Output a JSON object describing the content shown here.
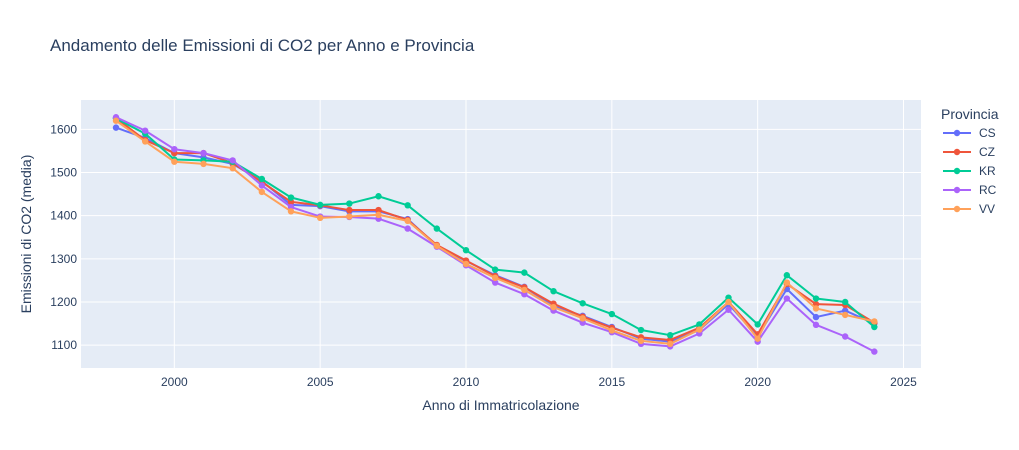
{
  "chart_data": {
    "type": "line",
    "title": "Andamento delle Emissioni di CO2 per Anno e Provincia",
    "xlabel": "Anno di Immatricolazione",
    "ylabel": "Emissioni di CO2 (media)",
    "xlim": [
      1996.8,
      2025.6
    ],
    "ylim": [
      1047,
      1668
    ],
    "xticks": [
      2000,
      2005,
      2010,
      2015,
      2020,
      2025
    ],
    "yticks": [
      1100,
      1200,
      1300,
      1400,
      1500,
      1600
    ],
    "grid": true,
    "legend_title": "Provincia",
    "legend_position": "right",
    "x": [
      1998,
      1999,
      2000,
      2001,
      2002,
      2003,
      2004,
      2005,
      2006,
      2007,
      2008,
      2009,
      2010,
      2011,
      2012,
      2013,
      2014,
      2015,
      2016,
      2017,
      2018,
      2019,
      2020,
      2021,
      2022,
      2023,
      2024
    ],
    "series": [
      {
        "name": "CS",
        "color": "#636efa",
        "values": [
          1604,
          1580,
          1545,
          1535,
          1520,
          1480,
          1425,
          1422,
          1410,
          1410,
          1392,
          1330,
          1295,
          1262,
          1235,
          1190,
          1168,
          1142,
          1115,
          1108,
          1135,
          1195,
          1120,
          1230,
          1165,
          1180,
          1150
        ]
      },
      {
        "name": "CZ",
        "color": "#EF553B",
        "values": [
          1626,
          1575,
          1545,
          1545,
          1522,
          1478,
          1432,
          1424,
          1413,
          1413,
          1390,
          1332,
          1296,
          1260,
          1234,
          1196,
          1166,
          1140,
          1118,
          1112,
          1140,
          1200,
          1125,
          1242,
          1195,
          1193,
          1152
        ]
      },
      {
        "name": "KR",
        "color": "#00cc96",
        "values": [
          1625,
          1590,
          1530,
          1528,
          1525,
          1485,
          1442,
          1425,
          1428,
          1445,
          1424,
          1370,
          1320,
          1275,
          1268,
          1225,
          1197,
          1172,
          1135,
          1123,
          1148,
          1210,
          1148,
          1262,
          1208,
          1200,
          1142
        ]
      },
      {
        "name": "RC",
        "color": "#ab63fa",
        "values": [
          1628,
          1597,
          1554,
          1545,
          1528,
          1470,
          1420,
          1398,
          1397,
          1393,
          1370,
          1328,
          1285,
          1245,
          1218,
          1180,
          1152,
          1130,
          1103,
          1097,
          1127,
          1182,
          1108,
          1208,
          1147,
          1120,
          1085
        ]
      },
      {
        "name": "VV",
        "color": "#FFA15A",
        "values": [
          1620,
          1572,
          1525,
          1520,
          1510,
          1455,
          1410,
          1395,
          1398,
          1402,
          1388,
          1330,
          1288,
          1256,
          1228,
          1188,
          1162,
          1134,
          1110,
          1103,
          1136,
          1200,
          1115,
          1245,
          1185,
          1170,
          1155
        ]
      }
    ]
  }
}
